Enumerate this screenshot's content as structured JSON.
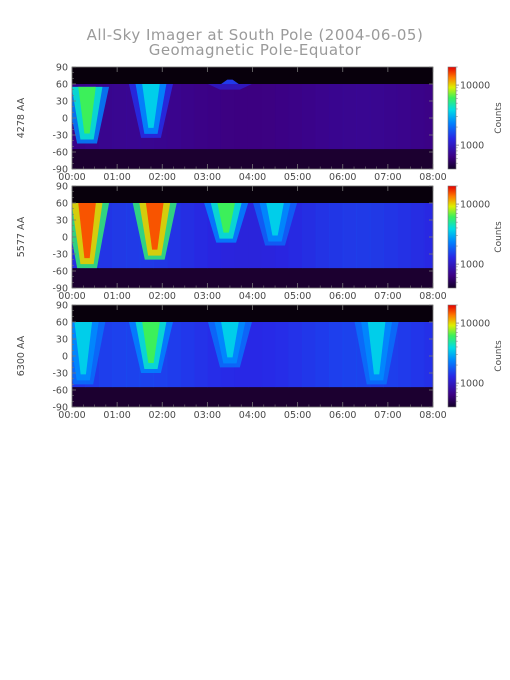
{
  "figure": {
    "title": "All-Sky Imager at South Pole (2004-06-05)",
    "subtitle": "Geomagnetic Pole-Equator"
  },
  "chart_data": [
    {
      "type": "heatmap",
      "ylabel": "4278 AA",
      "xlabel": "",
      "x_ticks": [
        "00:00",
        "01:00",
        "02:00",
        "03:00",
        "04:00",
        "05:00",
        "06:00",
        "07:00",
        "08:00"
      ],
      "y_ticks": [
        90,
        60,
        30,
        0,
        -30,
        -60,
        -90
      ],
      "xlim": [
        "00:00",
        "08:00"
      ],
      "ylim": [
        -90,
        90
      ],
      "colorbar": {
        "label": "Counts",
        "ticks": [
          10000,
          1000
        ],
        "scale": "log"
      },
      "features": [
        {
          "time": "00:20",
          "intensity": "green",
          "lat_range": [
            -45,
            55
          ]
        },
        {
          "time": "01:45",
          "intensity": "cyan",
          "lat_range": [
            -35,
            60
          ]
        },
        {
          "time": "03:30",
          "intensity": "blue",
          "lat_range": [
            50,
            60
          ]
        }
      ]
    },
    {
      "type": "heatmap",
      "ylabel": "5577 AA",
      "xlabel": "",
      "x_ticks": [
        "00:00",
        "01:00",
        "02:00",
        "03:00",
        "04:00",
        "05:00",
        "06:00",
        "07:00",
        "08:00"
      ],
      "y_ticks": [
        90,
        60,
        30,
        0,
        -30,
        -60,
        -90
      ],
      "xlim": [
        "00:00",
        "08:00"
      ],
      "ylim": [
        -90,
        90
      ],
      "colorbar": {
        "label": "Counts",
        "ticks": [
          10000,
          1000
        ],
        "scale": "log"
      },
      "features": [
        {
          "time": "00:20",
          "intensity": "red",
          "lat_range": [
            -55,
            60
          ]
        },
        {
          "time": "01:50",
          "intensity": "red",
          "lat_range": [
            -40,
            60
          ]
        },
        {
          "time": "03:25",
          "intensity": "green",
          "lat_range": [
            -10,
            60
          ]
        },
        {
          "time": "04:30",
          "intensity": "cyan",
          "lat_range": [
            -15,
            60
          ]
        }
      ]
    },
    {
      "type": "heatmap",
      "ylabel": "6300 AA",
      "xlabel": "",
      "x_ticks": [
        "00:00",
        "01:00",
        "02:00",
        "03:00",
        "04:00",
        "05:00",
        "06:00",
        "07:00",
        "08:00"
      ],
      "y_ticks": [
        90,
        60,
        30,
        0,
        -30,
        -60,
        -90
      ],
      "xlim": [
        "00:00",
        "08:00"
      ],
      "ylim": [
        -90,
        90
      ],
      "colorbar": {
        "label": "Counts",
        "ticks": [
          10000,
          1000
        ],
        "scale": "log"
      },
      "features": [
        {
          "time": "00:15",
          "intensity": "cyan",
          "lat_range": [
            -50,
            60
          ]
        },
        {
          "time": "01:45",
          "intensity": "green",
          "lat_range": [
            -30,
            60
          ]
        },
        {
          "time": "03:30",
          "intensity": "cyan",
          "lat_range": [
            -20,
            60
          ]
        },
        {
          "time": "06:45",
          "intensity": "cyan",
          "lat_range": [
            -50,
            60
          ]
        }
      ]
    }
  ]
}
